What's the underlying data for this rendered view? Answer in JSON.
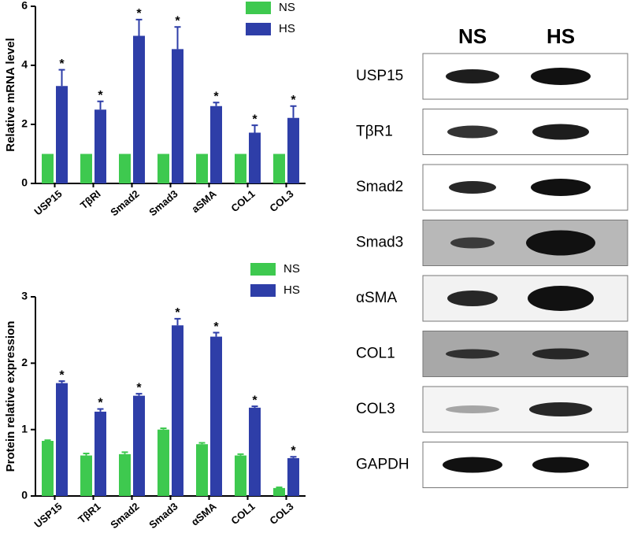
{
  "chart_data": [
    {
      "type": "bar",
      "y_label": "Relative mRNA level",
      "categories": [
        "USP15",
        "TβRI",
        "Smad2",
        "Smad3",
        "aSMA",
        "COL1",
        "COL3"
      ],
      "series": [
        {
          "name": "NS",
          "color": "#3ec94f",
          "values": [
            1,
            1,
            1,
            1,
            1,
            1,
            1
          ]
        },
        {
          "name": "HS",
          "color": "#2e3ea8",
          "values": [
            3.3,
            2.5,
            5.0,
            4.55,
            2.62,
            1.72,
            2.22
          ],
          "errors": [
            0.55,
            0.28,
            0.55,
            0.75,
            0.12,
            0.25,
            0.4
          ],
          "significance": [
            "*",
            "*",
            "*",
            "*",
            "*",
            "*",
            "*"
          ]
        }
      ],
      "ylim": [
        0,
        6
      ],
      "yticks": [
        0,
        2,
        4,
        6
      ]
    },
    {
      "type": "bar",
      "y_label": "Protein relative expression",
      "categories": [
        "USP15",
        "TβR1",
        "Smad2",
        "Smad3",
        "αSMA",
        "COL1",
        "COL3"
      ],
      "series": [
        {
          "name": "NS",
          "color": "#3ec94f",
          "values": [
            0.83,
            0.61,
            0.63,
            1.0,
            0.78,
            0.61,
            0.12
          ],
          "errors": [
            0.01,
            0.03,
            0.03,
            0.02,
            0.02,
            0.02,
            0.01
          ]
        },
        {
          "name": "HS",
          "color": "#2e3ea8",
          "values": [
            1.7,
            1.27,
            1.51,
            2.57,
            2.4,
            1.33,
            0.57
          ],
          "errors": [
            0.03,
            0.04,
            0.03,
            0.1,
            0.06,
            0.02,
            0.02
          ],
          "significance": [
            "*",
            "*",
            "*",
            "*",
            "*",
            "*",
            "*"
          ]
        }
      ],
      "ylim": [
        0,
        3
      ],
      "yticks": [
        0,
        1,
        2,
        3
      ]
    }
  ],
  "blot": {
    "columns": [
      "NS",
      "HS"
    ],
    "rows": [
      "USP15",
      "TβR1",
      "Smad2",
      "Smad3",
      "αSMA",
      "COL1",
      "COL3",
      "GAPDH"
    ]
  }
}
